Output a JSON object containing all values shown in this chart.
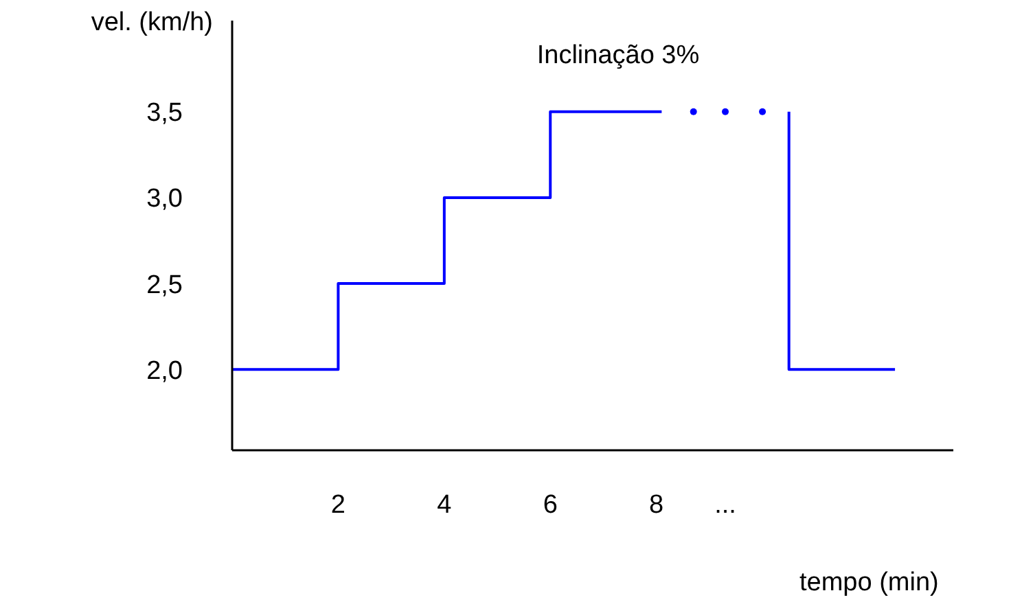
{
  "chart_data": {
    "type": "step",
    "title": "Inclinação 3%",
    "xlabel": "tempo (min)",
    "ylabel": "vel. (km/h)",
    "xlim": [
      0,
      13.6
    ],
    "xticks": [
      2,
      4,
      6,
      8,
      {
        "value": 9.3,
        "label": "..."
      }
    ],
    "ylim": [
      1.53,
      4.03
    ],
    "yticks": [
      {
        "value": 2,
        "label": "2,0"
      },
      {
        "value": 2.5,
        "label": "2,5"
      },
      {
        "value": 3,
        "label": "3,0"
      },
      {
        "value": 3.5,
        "label": "3,5"
      }
    ],
    "marker": "none",
    "line_style": "solid",
    "series": [
      {
        "color": "#0000ff",
        "x": [
          0,
          2,
          4,
          6,
          8.1
        ],
        "values": [
          2,
          2.5,
          3,
          3.5,
          3.5
        ]
      },
      {
        "type": "scatter",
        "marker": "circle",
        "color": "#0000ff",
        "x": [
          8.7,
          9.3,
          10.0
        ],
        "values": [
          3.5,
          3.5,
          3.5
        ]
      },
      {
        "type": "line",
        "color": "#0000ff",
        "x": [
          10.5,
          10.5,
          12.5
        ],
        "values": [
          3.5,
          2,
          2
        ]
      }
    ]
  }
}
